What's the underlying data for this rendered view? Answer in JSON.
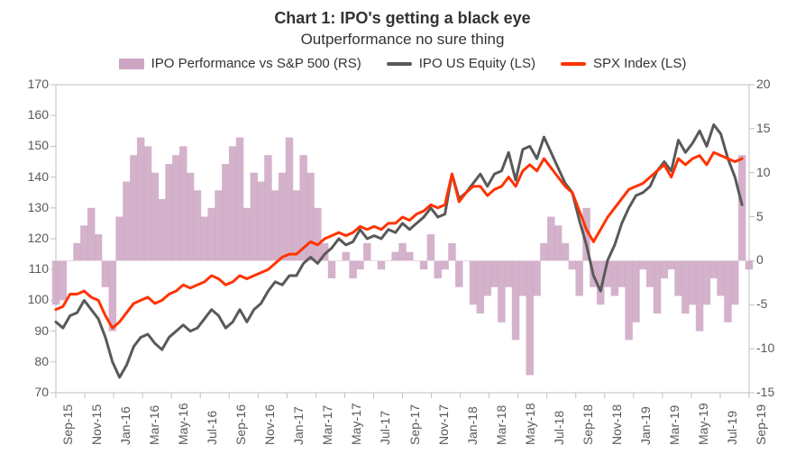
{
  "chart": {
    "type": "combo-area-line-dual-axis",
    "title": "Chart 1: IPO's getting a black eye",
    "subtitle": "Outperformance  no sure thing",
    "title_fontsize": 18,
    "subtitle_fontsize": 17,
    "tick_fontsize": 14,
    "background_color": "#ffffff",
    "plot_border_color": "#bfbfbf",
    "y_left": {
      "min": 70,
      "max": 170,
      "step": 10
    },
    "y_right": {
      "min": -15,
      "max": 20,
      "step": 5
    },
    "x_labels": [
      "Sep-15",
      "Nov-15",
      "Jan-16",
      "Mar-16",
      "May-16",
      "Jul-16",
      "Sep-16",
      "Nov-16",
      "Jan-17",
      "Mar-17",
      "May-17",
      "Jul-17",
      "Sep-17",
      "Nov-17",
      "Jan-18",
      "Mar-18",
      "May-18",
      "Jul-18",
      "Sep-18",
      "Nov-18",
      "Jan-19",
      "Mar-19",
      "May-19",
      "Jul-19",
      "Sep-19"
    ],
    "area_series": {
      "name": "IPO Performance vs S&P 500 (RS)",
      "color": "#cda5c2",
      "opacity": 0.85,
      "axis": "right",
      "data": [
        -5,
        -4.5,
        0,
        2,
        4,
        6,
        3,
        -3,
        -8,
        5,
        9,
        12,
        14,
        13,
        10,
        7,
        11,
        12,
        13,
        10,
        8,
        5,
        6,
        8,
        11,
        13,
        14,
        6,
        10,
        9,
        12,
        8,
        10,
        14,
        8,
        12,
        10,
        6,
        2,
        -2,
        0,
        1,
        -2,
        -1,
        2,
        0,
        -1,
        0,
        1,
        2,
        1,
        0,
        -1,
        3,
        -2,
        -1,
        2,
        -3,
        0,
        -5,
        -6,
        -4,
        -3,
        -7,
        -3,
        -9,
        -4,
        -13,
        -4,
        2,
        5,
        4,
        2,
        -1,
        -4,
        6,
        -3,
        -5,
        -3,
        -4,
        -3,
        -9,
        -7,
        -1,
        -3,
        -6,
        -2,
        -1,
        -4,
        -6,
        -5,
        -8,
        -5,
        -2,
        -4,
        -7,
        -5,
        12,
        -1
      ]
    },
    "line_series": [
      {
        "name": "IPO US Equity (LS)",
        "color": "#595959",
        "width": 3,
        "axis": "left",
        "data": [
          93,
          91,
          95,
          96,
          100,
          97,
          94,
          88,
          80,
          75,
          79,
          85,
          88,
          89,
          86,
          84,
          88,
          90,
          92,
          90,
          91,
          94,
          97,
          95,
          91,
          93,
          97,
          93,
          97,
          99,
          103,
          106,
          105,
          108,
          108,
          112,
          114,
          112,
          115,
          117,
          120,
          118,
          119,
          123,
          120,
          121,
          120,
          123,
          122,
          125,
          123,
          125,
          127,
          130,
          127,
          128,
          141,
          133,
          135,
          138,
          141,
          137,
          141,
          142,
          148,
          139,
          149,
          150,
          146,
          153,
          148,
          143,
          138,
          135,
          126,
          118,
          108,
          103,
          113,
          118,
          125,
          130,
          134,
          135,
          137,
          142,
          145,
          142,
          152,
          148,
          151,
          155,
          150,
          157,
          154,
          146,
          140,
          131
        ]
      },
      {
        "name": "SPX Index (LS)",
        "color": "#ff3300",
        "width": 3,
        "axis": "left",
        "data": [
          97,
          98,
          102,
          102,
          103,
          101,
          100,
          95,
          91,
          93,
          96,
          99,
          100,
          101,
          99,
          100,
          102,
          103,
          105,
          104,
          105,
          106,
          108,
          107,
          105,
          106,
          108,
          107,
          108,
          109,
          110,
          112,
          114,
          115,
          115,
          117,
          119,
          118,
          120,
          121,
          122,
          121,
          122,
          124,
          123,
          124,
          123,
          125,
          125,
          127,
          126,
          128,
          129,
          131,
          130,
          131,
          141,
          132,
          135,
          137,
          137,
          134,
          136,
          137,
          140,
          137,
          142,
          144,
          142,
          146,
          143,
          140,
          137,
          135,
          129,
          123,
          119,
          123,
          127,
          130,
          133,
          136,
          137,
          138,
          140,
          142,
          144,
          140,
          146,
          144,
          146,
          147,
          144,
          148,
          147,
          146,
          145,
          146
        ]
      }
    ],
    "legend": [
      {
        "type": "area",
        "label": "IPO Performance vs S&P 500 (RS)",
        "color": "#cda5c2"
      },
      {
        "type": "line",
        "label": "IPO US Equity (LS)",
        "color": "#595959"
      },
      {
        "type": "line",
        "label": "SPX Index (LS)",
        "color": "#ff3300"
      }
    ],
    "notes": "Area series uses right axis (RS). Two line series use left axis (LS). X-axis ticks rotated -90deg. Plot area bordered, no gridlines."
  }
}
